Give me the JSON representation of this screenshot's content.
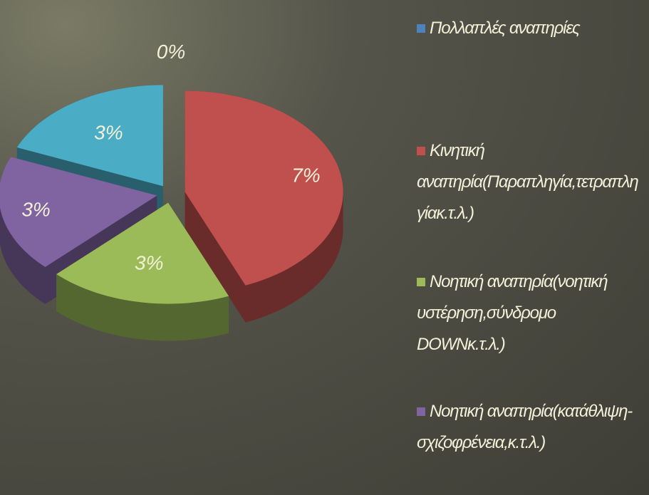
{
  "chart_data": {
    "type": "pie",
    "categories": [
      "Πολλαπλές αναπηρίες",
      "Κινητική αναπηρία(Παραπληγία,τετραπληγίακ.τ.λ.)",
      "Νοητική αναπηρία(νοητική υστέρηση,σύνδρομο DOWNκ.τ.λ.)",
      "Νοητική αναπηρία(κατάθλιψη-σχιζοφρένεια,κ.τ.λ.)",
      null
    ],
    "values": [
      0,
      7,
      3,
      3,
      3
    ],
    "value_labels": [
      "0%",
      "7%",
      "3%",
      "3%",
      "3%"
    ],
    "colors": [
      "#4f81bd",
      "#c0504d",
      "#9bbb59",
      "#8064a2",
      "#4bacc6"
    ]
  }
}
